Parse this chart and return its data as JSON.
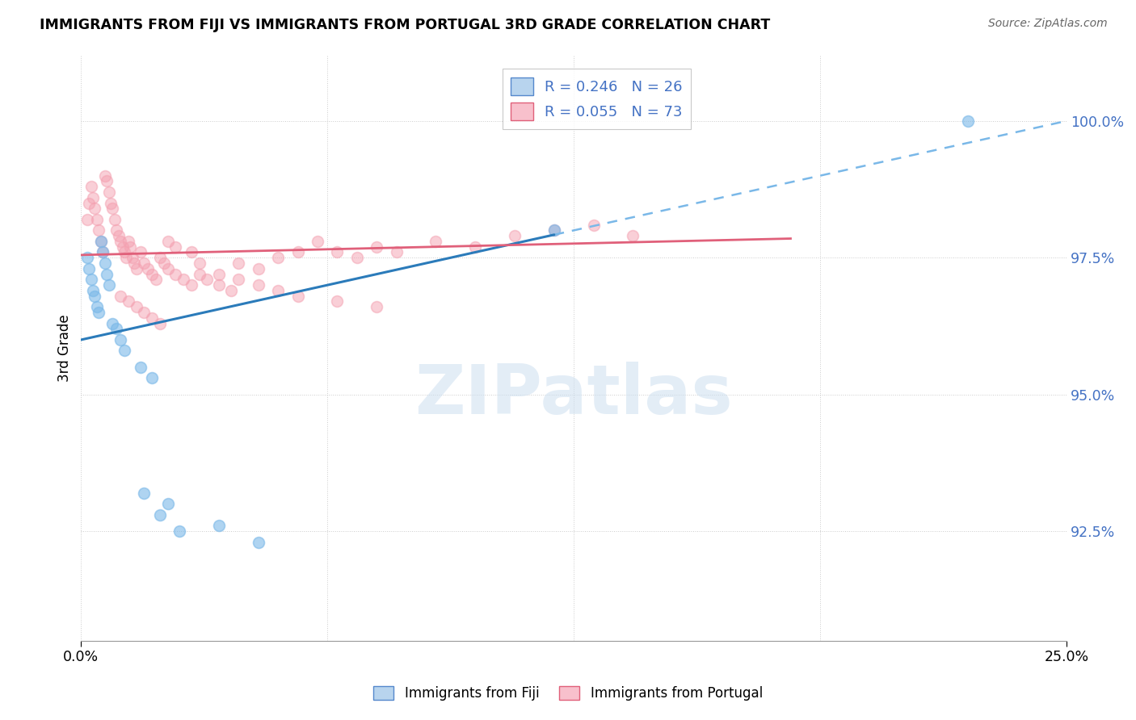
{
  "title": "IMMIGRANTS FROM FIJI VS IMMIGRANTS FROM PORTUGAL 3RD GRADE CORRELATION CHART",
  "source": "Source: ZipAtlas.com",
  "ylabel": "3rd Grade",
  "xlim": [
    0.0,
    25.0
  ],
  "ylim": [
    90.5,
    101.2
  ],
  "fiji_color": "#7ab8e8",
  "portugal_color": "#f4a0b0",
  "fiji_R": 0.246,
  "fiji_N": 26,
  "portugal_R": 0.055,
  "portugal_N": 73,
  "watermark": "ZIPatlas",
  "fiji_x": [
    0.15,
    0.2,
    0.25,
    0.3,
    0.35,
    0.4,
    0.45,
    0.5,
    0.55,
    0.6,
    0.65,
    0.7,
    0.8,
    0.9,
    1.0,
    1.1,
    1.5,
    1.8,
    2.0,
    2.2,
    2.5,
    3.5,
    4.5,
    12.0,
    1.6,
    22.5
  ],
  "fiji_y": [
    97.5,
    97.3,
    97.1,
    96.9,
    96.8,
    96.6,
    96.5,
    97.8,
    97.6,
    97.4,
    97.2,
    97.0,
    96.3,
    96.2,
    96.0,
    95.8,
    95.5,
    95.3,
    92.8,
    93.0,
    92.5,
    92.6,
    92.3,
    98.0,
    93.2,
    100.0
  ],
  "portugal_x": [
    0.15,
    0.2,
    0.25,
    0.3,
    0.35,
    0.4,
    0.45,
    0.5,
    0.55,
    0.6,
    0.65,
    0.7,
    0.75,
    0.8,
    0.85,
    0.9,
    0.95,
    1.0,
    1.05,
    1.1,
    1.15,
    1.2,
    1.25,
    1.3,
    1.35,
    1.4,
    1.5,
    1.6,
    1.7,
    1.8,
    1.9,
    2.0,
    2.1,
    2.2,
    2.4,
    2.6,
    2.8,
    3.0,
    3.2,
    3.5,
    3.8,
    4.0,
    4.5,
    5.0,
    5.5,
    6.0,
    6.5,
    7.0,
    7.5,
    8.0,
    9.0,
    10.0,
    11.0,
    12.0,
    13.0,
    14.0,
    1.0,
    1.2,
    1.4,
    1.6,
    1.8,
    2.0,
    2.2,
    2.4,
    2.8,
    3.0,
    3.5,
    4.0,
    4.5,
    5.0,
    5.5,
    6.5,
    7.5
  ],
  "portugal_y": [
    98.2,
    98.5,
    98.8,
    98.6,
    98.4,
    98.2,
    98.0,
    97.8,
    97.6,
    99.0,
    98.9,
    98.7,
    98.5,
    98.4,
    98.2,
    98.0,
    97.9,
    97.8,
    97.7,
    97.6,
    97.5,
    97.8,
    97.7,
    97.5,
    97.4,
    97.3,
    97.6,
    97.4,
    97.3,
    97.2,
    97.1,
    97.5,
    97.4,
    97.3,
    97.2,
    97.1,
    97.0,
    97.2,
    97.1,
    97.0,
    96.9,
    97.4,
    97.3,
    97.5,
    97.6,
    97.8,
    97.6,
    97.5,
    97.7,
    97.6,
    97.8,
    97.7,
    97.9,
    98.0,
    98.1,
    97.9,
    96.8,
    96.7,
    96.6,
    96.5,
    96.4,
    96.3,
    97.8,
    97.7,
    97.6,
    97.4,
    97.2,
    97.1,
    97.0,
    96.9,
    96.8,
    96.7,
    96.6
  ]
}
